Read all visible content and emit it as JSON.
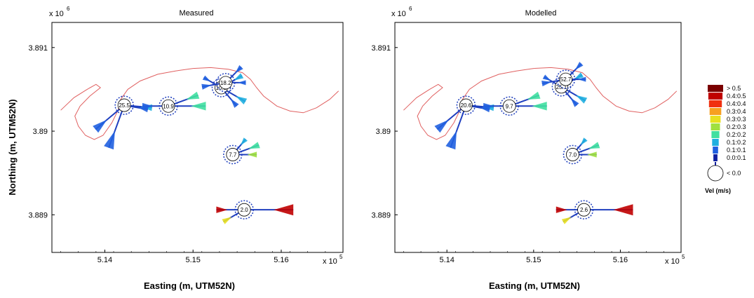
{
  "figure": {
    "ylabel": "Northing (m, UTM52N)",
    "colors": {
      "coastline": "#e06060",
      "axis": "#000000",
      "rose_shaft": "#1f3fbf"
    }
  },
  "chart_data": [
    {
      "type": "scatter",
      "title": "Measured",
      "xlabel": "Easting (m, UTM52N)",
      "ylabel": "Northing (m, UTM52N)",
      "x_exponent_label": "x 10",
      "x_exponent_power": "5",
      "y_exponent_label": "x 10",
      "y_exponent_power": "6",
      "xlim": [
        513400,
        516700
      ],
      "ylim": [
        3888550,
        3891300
      ],
      "xticks": [
        {
          "value": 514000,
          "label": "5.14"
        },
        {
          "value": 515000,
          "label": "5.15"
        },
        {
          "value": 516000,
          "label": "5.16"
        }
      ],
      "yticks": [
        {
          "value": 3889000,
          "label": "3.889"
        },
        {
          "value": 3890000,
          "label": "3.89"
        },
        {
          "value": 3891000,
          "label": "3.891"
        }
      ],
      "stations": [
        {
          "x": 514220,
          "y": 3890310,
          "label": "25.5"
        },
        {
          "x": 514720,
          "y": 3890300,
          "label": "10.9"
        },
        {
          "x": 515320,
          "y": 3890520,
          "label": "10.2"
        },
        {
          "x": 515370,
          "y": 3890580,
          "label": "18.2"
        },
        {
          "x": 515450,
          "y": 3889720,
          "label": "7.7"
        },
        {
          "x": 515580,
          "y": 3889060,
          "label": "2.0"
        }
      ]
    },
    {
      "type": "scatter",
      "title": "Modelled",
      "xlabel": "Easting (m, UTM52N)",
      "ylabel": "Northing (m, UTM52N)",
      "x_exponent_label": "x 10",
      "x_exponent_power": "5",
      "y_exponent_label": "x 10",
      "y_exponent_power": "6",
      "xlim": [
        513400,
        516700
      ],
      "ylim": [
        3888550,
        3891300
      ],
      "xticks": [
        {
          "value": 514000,
          "label": "5.14"
        },
        {
          "value": 515000,
          "label": "5.15"
        },
        {
          "value": 516000,
          "label": "5.16"
        }
      ],
      "yticks": [
        {
          "value": 3889000,
          "label": "3.889"
        },
        {
          "value": 3890000,
          "label": "3.89"
        },
        {
          "value": 3891000,
          "label": "3.891"
        }
      ],
      "stations": [
        {
          "x": 514220,
          "y": 3890310,
          "label": "20.6"
        },
        {
          "x": 514720,
          "y": 3890300,
          "label": "9.7"
        },
        {
          "x": 515320,
          "y": 3890530,
          "label": "25.1"
        },
        {
          "x": 515370,
          "y": 3890620,
          "label": "52.7"
        },
        {
          "x": 515450,
          "y": 3889720,
          "label": "7.0"
        },
        {
          "x": 515580,
          "y": 3889060,
          "label": "2.6"
        }
      ]
    }
  ],
  "legend": {
    "title": "Vel (m/s)",
    "entries": [
      {
        "label": "> 0.5",
        "color": "#7a0000"
      },
      {
        "label": "0.4:0.5",
        "color": "#c00000"
      },
      {
        "label": "0.4:0.4",
        "color": "#f03010"
      },
      {
        "label": "0.3:0.4",
        "color": "#f7a020"
      },
      {
        "label": "0.3:0.3",
        "color": "#e8e020"
      },
      {
        "label": "0.2:0.3",
        "color": "#a0e040"
      },
      {
        "label": "0.2:0.2",
        "color": "#40e0a0"
      },
      {
        "label": "0.1:0.2",
        "color": "#20b0e0"
      },
      {
        "label": "0.1:0.1",
        "color": "#2060e0"
      },
      {
        "label": "0.0:0.1",
        "color": "#1020a0"
      }
    ],
    "calm_label": "< 0.0"
  }
}
